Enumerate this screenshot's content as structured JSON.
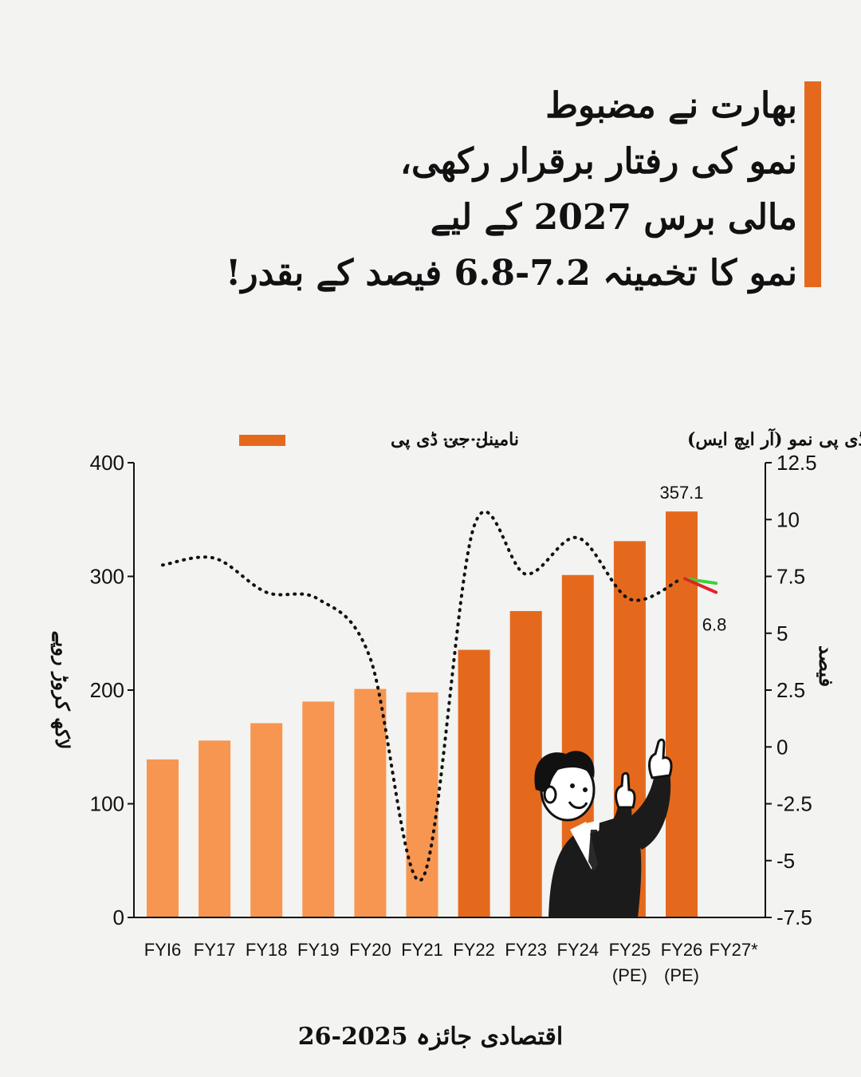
{
  "headline": {
    "lines": [
      "بھارت نے مضبوط",
      "نمو کی رفتار برقرار رکھی،",
      "مالی برس 2027 کے لیے",
      "نمو کا تخمینہ 7.2-6.8 فیصد کے بقدر!"
    ]
  },
  "colors": {
    "accent": "#e5691d",
    "bar_light": "#f79651",
    "bar_dark": "#e5691d",
    "projection_high": "#3bd13b",
    "projection_low": "#e0242b",
    "background": "#f3f3f1"
  },
  "illustration": "man-pointing-up-icon",
  "source": "اقتصادی جائزہ 2025-26",
  "chart_data": {
    "type": "bar",
    "categories": [
      "FY16",
      "FY17",
      "FY18",
      "FY19",
      "FY20",
      "FY21",
      "FY22",
      "FY23",
      "FY24",
      "FY25\n(PE)",
      "FY26\n(PE)",
      "FY27*"
    ],
    "category_labels": [
      "FYI6",
      "FY17",
      "FY18",
      "FY19",
      "FY20",
      "FY21",
      "FY22",
      "FY23",
      "FY24",
      "FY25",
      "FY26",
      "FY27*"
    ],
    "category_sublabels": [
      "",
      "",
      "",
      "",
      "",
      "",
      "",
      "",
      "",
      "(PE)",
      "(PE)",
      ""
    ],
    "series": [
      {
        "name": "نامینل جی ڈی پی",
        "type": "bar",
        "axis": "left",
        "values": [
          139,
          155.6,
          170.9,
          189.9,
          201,
          198,
          235.4,
          269.5,
          301.2,
          331,
          357.1,
          null
        ],
        "shade": [
          "light",
          "light",
          "light",
          "light",
          "light",
          "light",
          "dark",
          "dark",
          "dark",
          "dark",
          "dark",
          "dark"
        ]
      },
      {
        "name": "ریئل جی ڈی پی نمو (آر ایچ ایس)",
        "type": "line",
        "style": "dotted",
        "axis": "right",
        "values": [
          8.0,
          8.3,
          6.8,
          6.5,
          3.9,
          -5.8,
          9.7,
          7.6,
          9.2,
          6.5,
          7.4,
          null
        ]
      }
    ],
    "projection": {
      "from_category": "FY26\n(PE)",
      "to_category": "FY27*",
      "start": 7.4,
      "high": 7.2,
      "low": 6.8
    },
    "data_labels": [
      {
        "category": "FY26\n(PE)",
        "series": "نامینل جی ڈی پی",
        "text": "357.1"
      },
      {
        "category": "FY27*",
        "series": "projection",
        "text": "6.8"
      }
    ],
    "ylabel": "لاکھ کروڑ روپے",
    "y2label": "فیصد",
    "ylim": [
      0,
      400
    ],
    "yticks": [
      "0",
      "100",
      "200",
      "300",
      "400"
    ],
    "y2lim": [
      -7.5,
      12.5
    ],
    "y2ticks": [
      "-7.5",
      "-5",
      "-2.5",
      "0",
      "2.5",
      "5",
      "7.5",
      "10",
      "12.5"
    ],
    "legend_position": "top",
    "grid": false
  }
}
